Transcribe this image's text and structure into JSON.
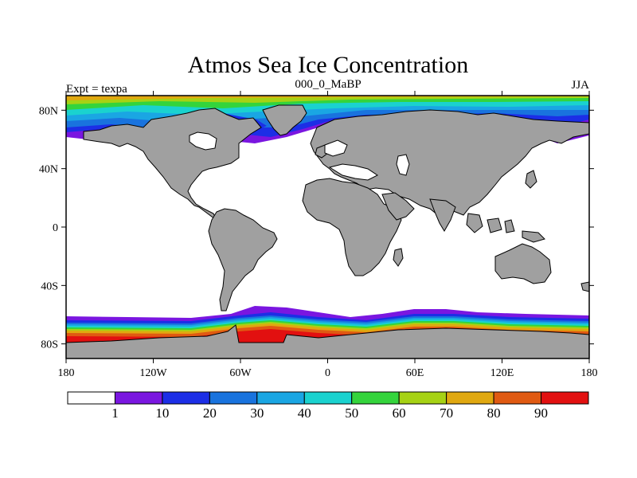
{
  "map": {
    "title": "Atmos Sea Ice Concentration",
    "subtitle_left": "Expt = texpa",
    "subtitle_center": "000_0_MaBP",
    "subtitle_right": "JJA",
    "lat_ticks": [
      {
        "label": "80N",
        "lat": 80
      },
      {
        "label": "40N",
        "lat": 40
      },
      {
        "label": "0",
        "lat": 0
      },
      {
        "label": "40S",
        "lat": -40
      },
      {
        "label": "80S",
        "lat": -80
      }
    ],
    "lon_ticks": [
      {
        "label": "180",
        "lon": -180
      },
      {
        "label": "120W",
        "lon": -120
      },
      {
        "label": "60W",
        "lon": -60
      },
      {
        "label": "0",
        "lon": 0
      },
      {
        "label": "60E",
        "lon": 60
      },
      {
        "label": "120E",
        "lon": 120
      },
      {
        "label": "180",
        "lon": 180
      }
    ],
    "extent": {
      "lon_min": -180,
      "lon_max": 180,
      "lat_min": -90,
      "lat_max": 90
    }
  },
  "colors": {
    "land": "#a0a0a0",
    "ocean": "#ffffff",
    "outline": "#000000"
  },
  "colorbar": {
    "colors": [
      "#ffffff",
      "#7a16e0",
      "#1c2ee6",
      "#1973de",
      "#1aa6e3",
      "#1ad2cf",
      "#34d43c",
      "#a6d214",
      "#e0a810",
      "#e05a12",
      "#e21010"
    ],
    "labels": [
      "1",
      "10",
      "20",
      "30",
      "40",
      "50",
      "60",
      "70",
      "80",
      "90"
    ]
  }
}
